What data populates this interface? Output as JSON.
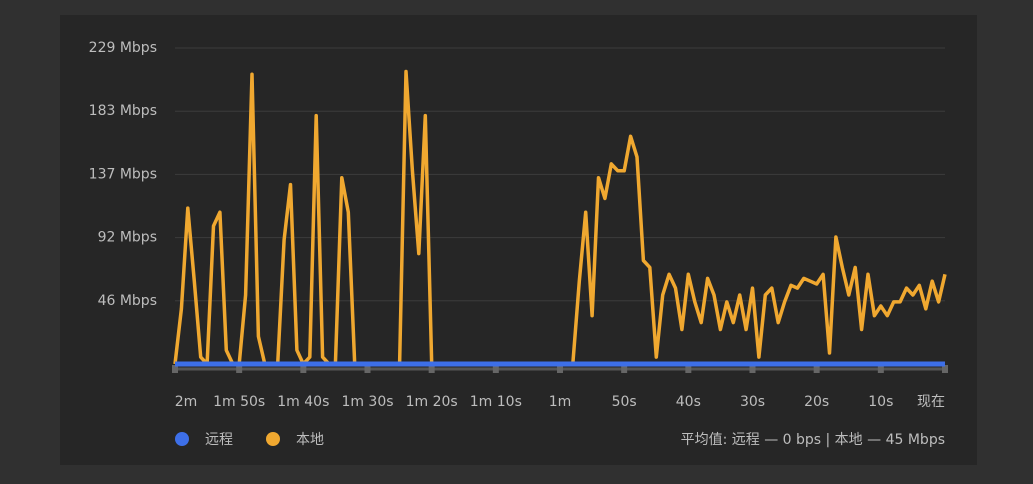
{
  "chart_data": {
    "type": "line",
    "x": [
      0,
      1,
      2,
      3,
      4,
      5,
      6,
      7,
      8,
      9,
      10,
      11,
      12,
      13,
      14,
      15,
      16,
      17,
      18,
      19,
      20,
      21,
      22,
      23,
      24,
      25,
      26,
      27,
      28,
      29,
      30,
      31,
      32,
      33,
      34,
      35,
      36,
      37,
      38,
      39,
      40,
      41,
      42,
      43,
      44,
      45,
      46,
      47,
      48,
      49,
      50,
      51,
      52,
      53,
      54,
      55,
      56,
      57,
      58,
      59,
      60,
      61,
      62,
      63,
      64,
      65,
      66,
      67,
      68,
      69,
      70,
      71,
      72,
      73,
      74,
      75,
      76,
      77,
      78,
      79,
      80,
      81,
      82,
      83,
      84,
      85,
      86,
      87,
      88,
      89,
      90,
      91,
      92,
      93,
      94,
      95,
      96,
      97,
      98,
      99,
      100,
      101,
      102,
      103,
      104,
      105,
      106,
      107,
      108,
      109,
      110,
      111,
      112,
      113,
      114,
      115,
      116,
      117,
      118,
      119,
      120
    ],
    "series": [
      {
        "name": "远程",
        "color": "#3d6fe8",
        "values": [
          0,
          0,
          0,
          0,
          0,
          0,
          0,
          0,
          0,
          0,
          0,
          0,
          0,
          0,
          0,
          0,
          0,
          0,
          0,
          0,
          0,
          0,
          0,
          0,
          0,
          0,
          0,
          0,
          0,
          0,
          0,
          0,
          0,
          0,
          0,
          0,
          0,
          0,
          0,
          0,
          0,
          0,
          0,
          0,
          0,
          0,
          0,
          0,
          0,
          0,
          0,
          0,
          0,
          0,
          0,
          0,
          0,
          0,
          0,
          0,
          0,
          0,
          0,
          0,
          0,
          0,
          0,
          0,
          0,
          0,
          0,
          0,
          0,
          0,
          0,
          0,
          0,
          0,
          0,
          0,
          0,
          0,
          0,
          0,
          0,
          0,
          0,
          0,
          0,
          0,
          0,
          0,
          0,
          0,
          0,
          0,
          0,
          0,
          0,
          0,
          0,
          0,
          0,
          0,
          0,
          0,
          0,
          0,
          0,
          0,
          0,
          0,
          0,
          0,
          0,
          0,
          0,
          0,
          0,
          0,
          0
        ]
      },
      {
        "name": "本地",
        "color": "#f0a830",
        "values": [
          0,
          40,
          113,
          60,
          5,
          0,
          100,
          110,
          10,
          0,
          0,
          50,
          210,
          20,
          0,
          0,
          0,
          90,
          130,
          10,
          0,
          5,
          180,
          5,
          0,
          0,
          135,
          110,
          0,
          0,
          0,
          0,
          0,
          0,
          0,
          0,
          212,
          140,
          80,
          180,
          0,
          0,
          0,
          0,
          0,
          0,
          0,
          0,
          0,
          0,
          0,
          0,
          0,
          0,
          0,
          0,
          0,
          0,
          0,
          0,
          0,
          0,
          0,
          60,
          110,
          35,
          135,
          120,
          145,
          140,
          140,
          165,
          150,
          75,
          70,
          5,
          50,
          65,
          55,
          25,
          65,
          45,
          30,
          62,
          50,
          25,
          45,
          30,
          50,
          25,
          55,
          5,
          50,
          55,
          30,
          45,
          57,
          55,
          62,
          60,
          58,
          65,
          8,
          92,
          70,
          50,
          70,
          25,
          65,
          35,
          42,
          35,
          45,
          45,
          55,
          50,
          57,
          40,
          60,
          45,
          65
        ]
      }
    ],
    "xlim": [
      0,
      120
    ],
    "xticks": [
      {
        "value": 0,
        "label": "2m"
      },
      {
        "value": 10,
        "label": "1m 50s"
      },
      {
        "value": 20,
        "label": "1m 40s"
      },
      {
        "value": 30,
        "label": "1m 30s"
      },
      {
        "value": 40,
        "label": "1m 20s"
      },
      {
        "value": 50,
        "label": "1m 10s"
      },
      {
        "value": 60,
        "label": "1m"
      },
      {
        "value": 70,
        "label": "50s"
      },
      {
        "value": 80,
        "label": "40s"
      },
      {
        "value": 90,
        "label": "30s"
      },
      {
        "value": 100,
        "label": "20s"
      },
      {
        "value": 110,
        "label": "10s"
      },
      {
        "value": 120,
        "label": "现在"
      }
    ],
    "ylim": [
      0,
      229
    ],
    "yticks": [
      {
        "value": 45.8,
        "label": "46 Mbps"
      },
      {
        "value": 91.6,
        "label": "92 Mbps"
      },
      {
        "value": 137.4,
        "label": "137 Mbps"
      },
      {
        "value": 183.2,
        "label": "183 Mbps"
      },
      {
        "value": 229,
        "label": "229 Mbps"
      }
    ],
    "grid": true,
    "legend": "bottom-left",
    "summary": "平均值: 远程 — 0 bps | 本地 — 45 Mbps"
  }
}
